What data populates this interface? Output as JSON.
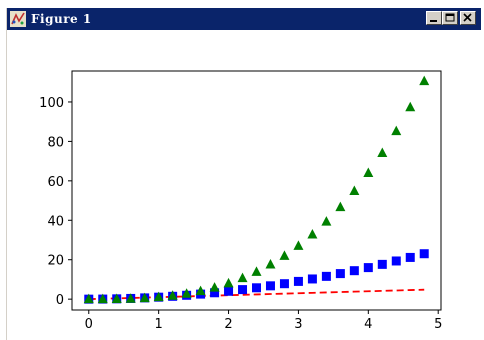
{
  "window": {
    "title": "Figure 1",
    "icon": "figure-app-icon",
    "controls": [
      "minimize-icon",
      "maximize-icon",
      "close-icon"
    ]
  },
  "chart_data": {
    "type": "scatter",
    "title": "",
    "xlabel": "",
    "ylabel": "",
    "xlim": [
      -0.24,
      5.04
    ],
    "ylim": [
      -5.5,
      115.7
    ],
    "xticks": [
      0,
      1,
      2,
      3,
      4,
      5
    ],
    "yticks": [
      0,
      20,
      40,
      60,
      80,
      100
    ],
    "grid": false,
    "x": [
      0.0,
      0.2,
      0.4,
      0.6,
      0.8,
      1.0,
      1.2,
      1.4,
      1.6,
      1.8,
      2.0,
      2.2,
      2.4,
      2.6,
      2.8,
      3.0,
      3.2,
      3.4,
      3.6,
      3.8,
      4.0,
      4.2,
      4.4,
      4.6,
      4.8
    ],
    "series": [
      {
        "style": "dashed-line",
        "color": "#ff0000",
        "values": [
          0.0,
          0.2,
          0.4,
          0.6,
          0.8,
          1.0,
          1.2,
          1.4,
          1.6,
          1.8,
          2.0,
          2.2,
          2.4,
          2.6,
          2.8,
          3.0,
          3.2,
          3.4,
          3.6,
          3.8,
          4.0,
          4.2,
          4.4,
          4.6,
          4.8
        ]
      },
      {
        "style": "square-marker",
        "color": "#0000ff",
        "values": [
          0.0,
          0.04,
          0.16,
          0.36,
          0.64,
          1.0,
          1.44,
          1.96,
          2.56,
          3.24,
          4.0,
          4.84,
          5.76,
          6.76,
          7.84,
          9.0,
          10.24,
          11.56,
          12.96,
          14.44,
          16.0,
          17.64,
          19.36,
          21.16,
          23.04
        ]
      },
      {
        "style": "triangle-marker",
        "color": "#008000",
        "values": [
          0.0,
          0.008,
          0.064,
          0.216,
          0.512,
          1.0,
          1.728,
          2.744,
          4.096,
          5.832,
          8.0,
          10.648,
          13.824,
          17.576,
          21.952,
          27.0,
          32.768,
          39.304,
          46.656,
          54.872,
          64.0,
          74.088,
          85.184,
          97.336,
          110.592
        ]
      }
    ]
  }
}
